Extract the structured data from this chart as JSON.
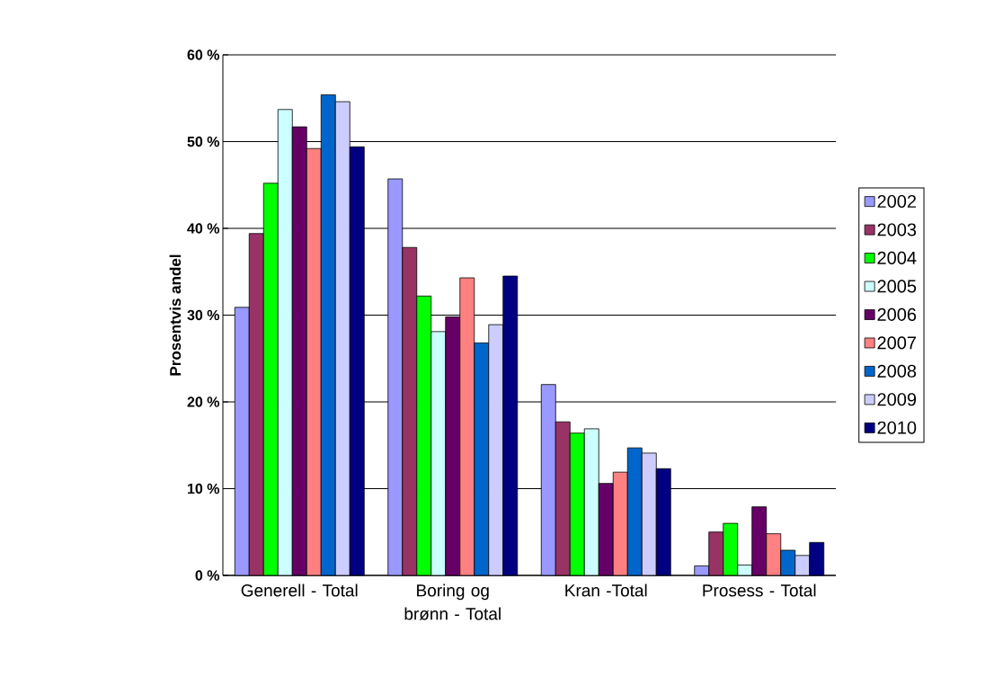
{
  "chart_data": {
    "type": "bar",
    "ylabel": "Prosentvis andel",
    "categories": [
      "Generell - Total",
      "Boring og brønn - Total",
      "Kran -Total",
      "Prosess - Total"
    ],
    "series": [
      {
        "name": "2002",
        "color": "#9999ff",
        "values": [
          30.9,
          45.7,
          22.0,
          1.1
        ]
      },
      {
        "name": "2003",
        "color": "#993366",
        "values": [
          39.4,
          37.8,
          17.7,
          5.0
        ]
      },
      {
        "name": "2004",
        "color": "#00ff00",
        "values": [
          45.2,
          32.2,
          16.4,
          6.0
        ]
      },
      {
        "name": "2005",
        "color": "#ccffff",
        "values": [
          53.7,
          28.1,
          16.9,
          1.2
        ]
      },
      {
        "name": "2006",
        "color": "#660066",
        "values": [
          51.7,
          29.8,
          10.6,
          7.9
        ]
      },
      {
        "name": "2007",
        "color": "#ff8080",
        "values": [
          49.2,
          34.3,
          11.9,
          4.8
        ]
      },
      {
        "name": "2008",
        "color": "#0066cc",
        "values": [
          55.4,
          26.8,
          14.7,
          2.9
        ]
      },
      {
        "name": "2009",
        "color": "#ccccff",
        "values": [
          54.6,
          28.9,
          14.1,
          2.3
        ]
      },
      {
        "name": "2010",
        "color": "#000080",
        "values": [
          49.4,
          34.5,
          12.3,
          3.8
        ]
      }
    ],
    "ylim": [
      0,
      60
    ],
    "yticks": [
      {
        "value": 0,
        "label": "0 %"
      },
      {
        "value": 10,
        "label": "10 %"
      },
      {
        "value": 20,
        "label": "20 %"
      },
      {
        "value": 30,
        "label": "30 %"
      },
      {
        "value": 40,
        "label": "40 %"
      },
      {
        "value": 50,
        "label": "50 %"
      },
      {
        "value": 60,
        "label": "60 %"
      }
    ],
    "grid": "y",
    "legend": "right"
  }
}
